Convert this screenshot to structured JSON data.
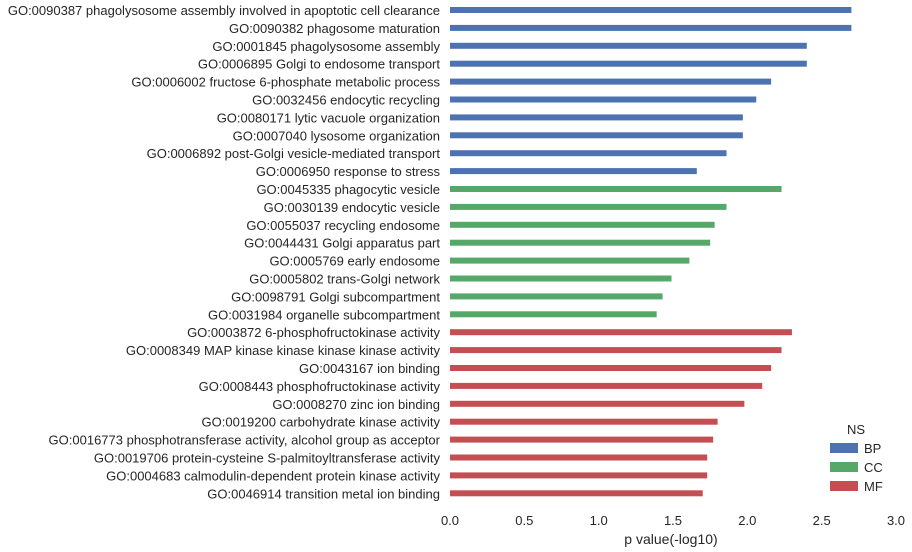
{
  "chart_data": {
    "type": "bar",
    "orientation": "horizontal",
    "xlabel": "p value(-log10)",
    "xlim": [
      0,
      3.0
    ],
    "xticks": [
      "0.0",
      "0.5",
      "1.0",
      "1.5",
      "2.0",
      "2.5",
      "3.0"
    ],
    "grid": false,
    "legend": {
      "title": "NS",
      "position": "bottom-right",
      "entries": [
        {
          "name": "BP",
          "color": "#4c72b0"
        },
        {
          "name": "CC",
          "color": "#55a868"
        },
        {
          "name": "MF",
          "color": "#c44e52"
        }
      ]
    },
    "categories": [
      {
        "label": "GO:0090387 phagolysosome assembly involved in apoptotic cell clearance",
        "value": 2.7,
        "ns": "BP"
      },
      {
        "label": "GO:0090382 phagosome maturation",
        "value": 2.7,
        "ns": "BP"
      },
      {
        "label": "GO:0001845 phagolysosome assembly",
        "value": 2.4,
        "ns": "BP"
      },
      {
        "label": "GO:0006895 Golgi to endosome transport",
        "value": 2.4,
        "ns": "BP"
      },
      {
        "label": "GO:0006002 fructose 6-phosphate metabolic process",
        "value": 2.16,
        "ns": "BP"
      },
      {
        "label": "GO:0032456 endocytic recycling",
        "value": 2.06,
        "ns": "BP"
      },
      {
        "label": "GO:0080171 lytic vacuole organization",
        "value": 1.97,
        "ns": "BP"
      },
      {
        "label": "GO:0007040 lysosome organization",
        "value": 1.97,
        "ns": "BP"
      },
      {
        "label": "GO:0006892 post-Golgi vesicle-mediated transport",
        "value": 1.86,
        "ns": "BP"
      },
      {
        "label": "GO:0006950 response to stress",
        "value": 1.66,
        "ns": "BP"
      },
      {
        "label": "GO:0045335 phagocytic vesicle",
        "value": 2.23,
        "ns": "CC"
      },
      {
        "label": "GO:0030139 endocytic vesicle",
        "value": 1.86,
        "ns": "CC"
      },
      {
        "label": "GO:0055037 recycling endosome",
        "value": 1.78,
        "ns": "CC"
      },
      {
        "label": "GO:0044431 Golgi apparatus part",
        "value": 1.75,
        "ns": "CC"
      },
      {
        "label": "GO:0005769 early endosome",
        "value": 1.61,
        "ns": "CC"
      },
      {
        "label": "GO:0005802 trans-Golgi network",
        "value": 1.49,
        "ns": "CC"
      },
      {
        "label": "GO:0098791 Golgi subcompartment",
        "value": 1.43,
        "ns": "CC"
      },
      {
        "label": "GO:0031984 organelle subcompartment",
        "value": 1.39,
        "ns": "CC"
      },
      {
        "label": "GO:0003872 6-phosphofructokinase activity",
        "value": 2.3,
        "ns": "MF"
      },
      {
        "label": "GO:0008349 MAP kinase kinase kinase kinase activity",
        "value": 2.23,
        "ns": "MF"
      },
      {
        "label": "GO:0043167 ion binding",
        "value": 2.16,
        "ns": "MF"
      },
      {
        "label": "GO:0008443 phosphofructokinase activity",
        "value": 2.1,
        "ns": "MF"
      },
      {
        "label": "GO:0008270 zinc ion binding",
        "value": 1.98,
        "ns": "MF"
      },
      {
        "label": "GO:0019200 carbohydrate kinase activity",
        "value": 1.8,
        "ns": "MF"
      },
      {
        "label": "GO:0016773 phosphotransferase activity, alcohol group as acceptor",
        "value": 1.77,
        "ns": "MF"
      },
      {
        "label": "GO:0019706 protein-cysteine S-palmitoyltransferase activity",
        "value": 1.73,
        "ns": "MF"
      },
      {
        "label": "GO:0004683 calmodulin-dependent protein kinase activity",
        "value": 1.73,
        "ns": "MF"
      },
      {
        "label": "GO:0046914 transition metal ion binding",
        "value": 1.7,
        "ns": "MF"
      }
    ]
  }
}
